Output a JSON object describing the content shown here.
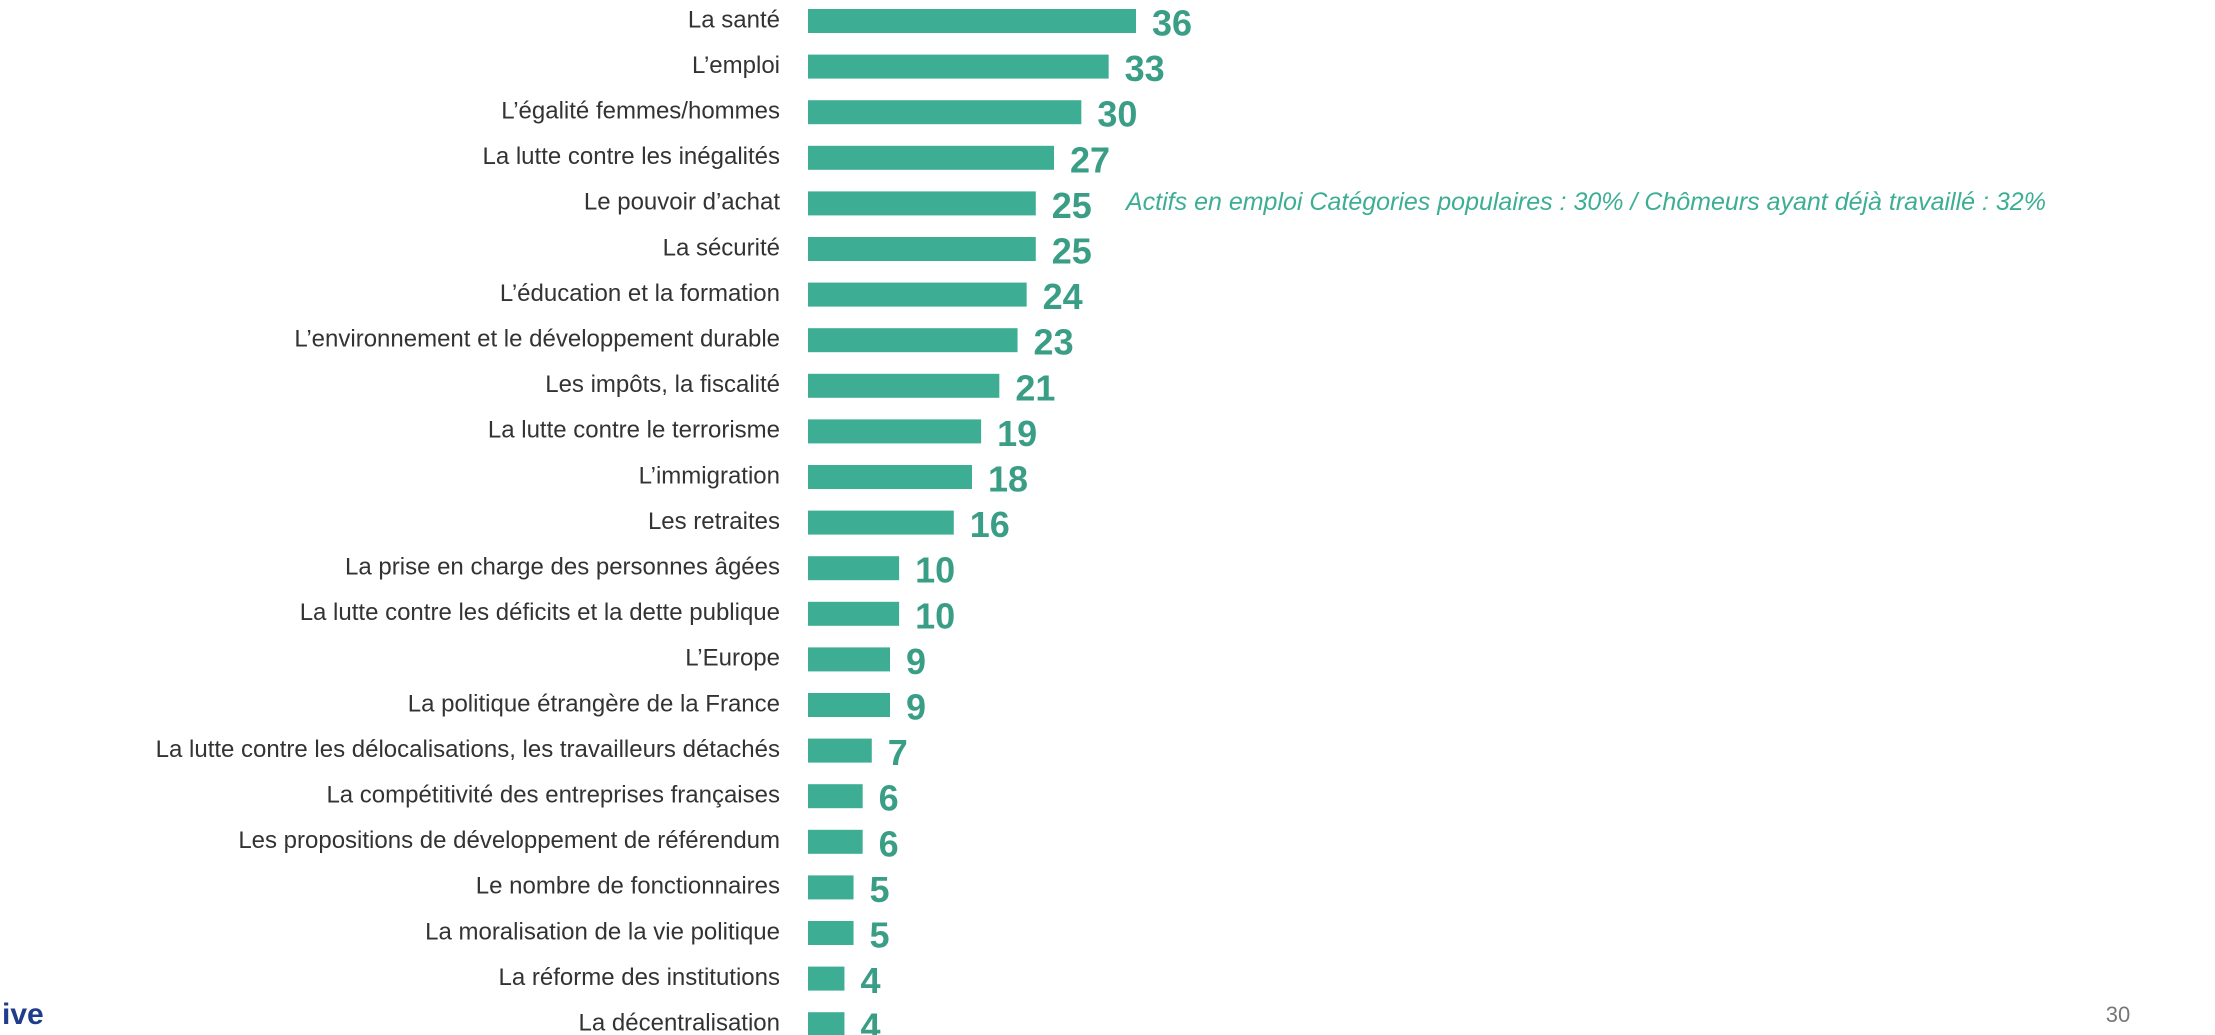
{
  "chart_data": {
    "type": "barh",
    "categories": [
      "La santé",
      "L’emploi",
      "L’égalité femmes/hommes",
      "La lutte contre les inégalités",
      "Le pouvoir d’achat",
      "La sécurité",
      "L’éducation et la formation",
      "L’environnement et le développement durable",
      "Les impôts, la fiscalité",
      "La lutte contre le terrorisme",
      "L’immigration",
      "Les retraites",
      "La prise en charge des personnes âgées",
      "La lutte contre les déficits et la dette publique",
      "L’Europe",
      "La politique étrangère de la France",
      "La lutte contre les délocalisations, les travailleurs détachés",
      "La compétitivité des entreprises françaises",
      "Les propositions de développement de référendum",
      "Le nombre de fonctionnaires",
      "La moralisation de la vie politique",
      "La réforme des institutions",
      "La décentralisation"
    ],
    "values": [
      36,
      33,
      30,
      27,
      25,
      25,
      24,
      23,
      21,
      19,
      18,
      16,
      10,
      10,
      9,
      9,
      7,
      6,
      6,
      5,
      5,
      4,
      4
    ],
    "color": "#3dae94",
    "annotation": "Actifs en emploi Catégories populaires : 30% / Chômeurs ayant déjà travaillé : 32%"
  },
  "footer": {
    "logo": "ive",
    "page_number": "30"
  }
}
